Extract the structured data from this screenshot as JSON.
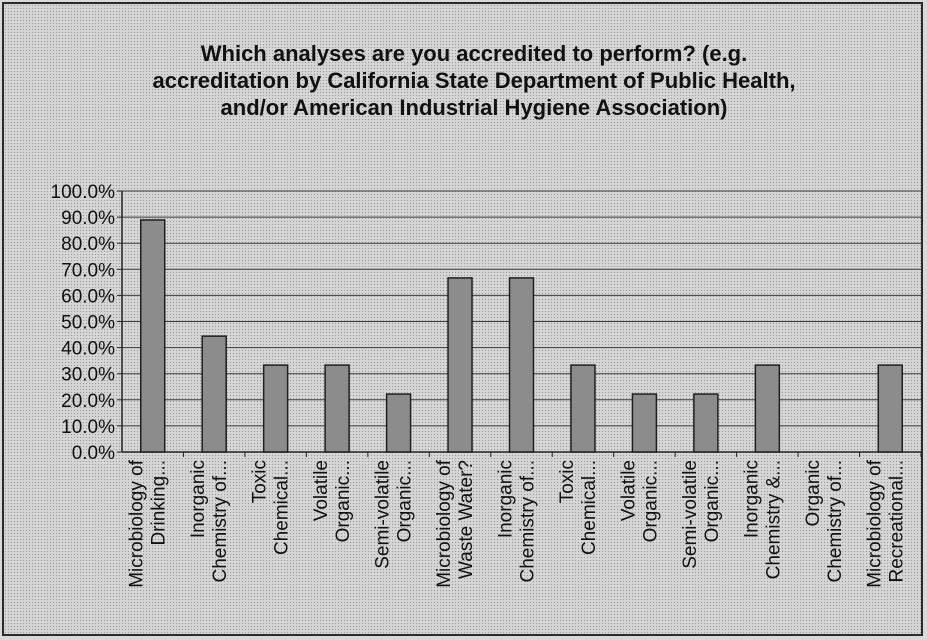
{
  "chart_data": {
    "type": "bar",
    "title_lines": [
      "Which analyses are you accredited to perform? (e.g.",
      "accreditation by California State Department of Public Health,",
      "and/or American Industrial Hygiene Association)"
    ],
    "categories": [
      [
        "Microbiology of",
        "Drinking..."
      ],
      [
        "Inorganic",
        "Chemistry of..."
      ],
      [
        "Toxic",
        "Chemical..."
      ],
      [
        "Volatile",
        "Organic..."
      ],
      [
        "Semi-volatile",
        "Organic..."
      ],
      [
        "Microbiology of",
        "Waste Water?"
      ],
      [
        "Inorganic",
        "Chemistry of..."
      ],
      [
        "Toxic",
        "Chemical..."
      ],
      [
        "Volatile",
        "Organic..."
      ],
      [
        "Semi-volatile",
        "Organic..."
      ],
      [
        "Inorganic",
        "Chemistry &..."
      ],
      [
        "Organic",
        "Chemistry of..."
      ],
      [
        "Microbiology of",
        "Recreational..."
      ]
    ],
    "values": [
      88.9,
      44.4,
      33.3,
      33.3,
      22.2,
      66.7,
      66.7,
      33.3,
      22.2,
      22.2,
      33.3,
      0.0,
      33.3
    ],
    "y_ticks": [
      "100.0%",
      "90.0%",
      "80.0%",
      "70.0%",
      "60.0%",
      "50.0%",
      "40.0%",
      "30.0%",
      "20.0%",
      "10.0%",
      "0.0%"
    ],
    "ylim": [
      0,
      100
    ],
    "xlabel": "",
    "ylabel": "",
    "grid": true,
    "legend": "none",
    "bar_color": "#8c8c8c"
  }
}
